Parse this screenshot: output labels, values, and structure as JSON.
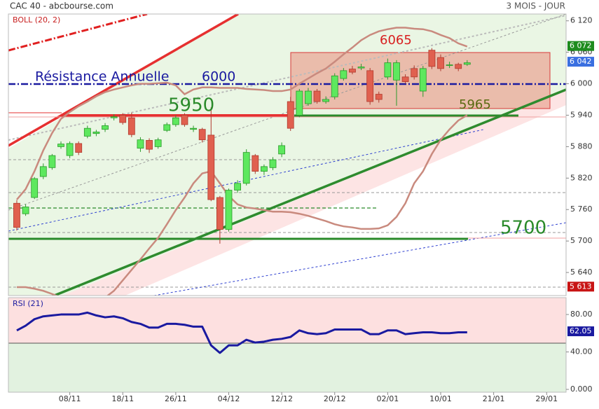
{
  "chart_data": [
    {
      "type": "candlestick",
      "title": "CAC 40 - abcbourse.com",
      "subtitle": "3 MOIS - JOUR",
      "indicator_label": "BOLL (20, 2)",
      "x": [
        0,
        1,
        2,
        3,
        4,
        5,
        6,
        7,
        8,
        9,
        10,
        11,
        12,
        13,
        14,
        15,
        16,
        17,
        18,
        19,
        20,
        21,
        22,
        23,
        24,
        25,
        26,
        27,
        28,
        29,
        30,
        31,
        32,
        33,
        34,
        35,
        36,
        37,
        38,
        39,
        40,
        41,
        42,
        43,
        44,
        45,
        46,
        47,
        48,
        49,
        50,
        51
      ],
      "open": [
        5772,
        5752,
        5783,
        5823,
        5840,
        5880,
        5863,
        5886,
        5900,
        5905,
        5913,
        5935,
        5940,
        5935,
        5877,
        5892,
        5880,
        5911,
        5922,
        5940,
        5913,
        5913,
        5902,
        5783,
        5722,
        5797,
        5810,
        5863,
        5833,
        5840,
        5866,
        5966,
        5940,
        5962,
        5986,
        5966,
        5975,
        6010,
        6028,
        6030,
        6025,
        5980,
        6013,
        6007,
        6013,
        6029,
        5986,
        6064,
        6050,
        6035,
        6037,
        6037
      ],
      "high": [
        5778,
        5770,
        5822,
        5848,
        5866,
        5890,
        5890,
        5890,
        5920,
        5912,
        5925,
        5942,
        5944,
        5945,
        5898,
        5896,
        5897,
        5926,
        5940,
        5944,
        5920,
        5916,
        5955,
        5786,
        5800,
        5816,
        5875,
        5866,
        5846,
        5860,
        5888,
        5975,
        5990,
        5992,
        5990,
        5976,
        6020,
        6030,
        6034,
        6038,
        6030,
        5985,
        6048,
        6045,
        6018,
        6035,
        6034,
        6068,
        6056,
        6042,
        6040,
        6045
      ],
      "low": [
        5720,
        5748,
        5780,
        5818,
        5836,
        5876,
        5858,
        5864,
        5896,
        5900,
        5908,
        5930,
        5922,
        5898,
        5870,
        5868,
        5876,
        5908,
        5918,
        5918,
        5908,
        5888,
        5776,
        5695,
        5718,
        5792,
        5806,
        5828,
        5826,
        5835,
        5860,
        5910,
        5936,
        5958,
        5962,
        5962,
        5970,
        6006,
        6018,
        6026,
        5960,
        5964,
        6008,
        5958,
        6000,
        6008,
        5975,
        6028,
        6024,
        6030,
        6024,
        6034
      ],
      "close": [
        5726,
        5765,
        5819,
        5842,
        5863,
        5885,
        5886,
        5869,
        5915,
        5908,
        5920,
        5937,
        5926,
        5903,
        5893,
        5875,
        5893,
        5922,
        5935,
        5922,
        5915,
        5893,
        5779,
        5722,
        5797,
        5810,
        5869,
        5833,
        5842,
        5855,
        5882,
        5915,
        5986,
        5986,
        5966,
        5970,
        6015,
        6025,
        6022,
        6032,
        5966,
        5970,
        6040,
        6040,
        6004,
        6013,
        6029,
        6033,
        6029,
        6036,
        6029,
        6040
      ],
      "upper_band": [
        5779,
        5799,
        5833,
        5873,
        5906,
        5933,
        5946,
        5957,
        5966,
        5976,
        5984,
        5989,
        5993,
        5997,
        6000,
        6000,
        6001,
        6002,
        5997,
        5980,
        5989,
        5993,
        5993,
        5992,
        5992,
        5992,
        5990,
        5989,
        5988,
        5986,
        5986,
        5989,
        6000,
        6010,
        6020,
        6029,
        6042,
        6056,
        6069,
        6083,
        6093,
        6100,
        6104,
        6107,
        6107,
        6105,
        6104,
        6100,
        6093,
        6087,
        6077,
        6071
      ],
      "lower_band": [
        5612,
        5612,
        5609,
        5605,
        5599,
        5592,
        5585,
        5583,
        5583,
        5585,
        5592,
        5605,
        5625,
        5645,
        5665,
        5686,
        5706,
        5732,
        5759,
        5783,
        5810,
        5829,
        5833,
        5810,
        5786,
        5770,
        5764,
        5762,
        5759,
        5756,
        5756,
        5755,
        5752,
        5748,
        5743,
        5738,
        5732,
        5728,
        5726,
        5723,
        5723,
        5724,
        5730,
        5746,
        5772,
        5810,
        5833,
        5866,
        5893,
        5913,
        5930,
        5940
      ],
      "up_color": "#5ee85e",
      "down_color": "#e0604f",
      "band_color": "#c98a7e",
      "xlim": [
        -0.95,
        62.2
      ],
      "xticks": [
        {
          "value": 6,
          "label": "08/11"
        },
        {
          "value": 12,
          "label": "18/11"
        },
        {
          "value": 18,
          "label": "26/11"
        },
        {
          "value": 24,
          "label": "04/12"
        },
        {
          "value": 30,
          "label": "12/12"
        },
        {
          "value": 36,
          "label": "20/12"
        },
        {
          "value": 42,
          "label": "02/01"
        },
        {
          "value": 48,
          "label": "10/01"
        },
        {
          "value": 54,
          "label": "21/01"
        },
        {
          "value": 60,
          "label": "29/01"
        }
      ],
      "ylim": [
        5596,
        6133
      ],
      "yticks": [
        {
          "value": 6120,
          "label": "6 120"
        },
        {
          "value": 6060,
          "label": "6 060"
        },
        {
          "value": 6000,
          "label": "6 000"
        },
        {
          "value": 5940,
          "label": "5 940"
        },
        {
          "value": 5880,
          "label": "5 880"
        },
        {
          "value": 5820,
          "label": "5 820"
        },
        {
          "value": 5760,
          "label": "5 760"
        },
        {
          "value": 5700,
          "label": "5 700"
        },
        {
          "value": 5640,
          "label": "5 640"
        }
      ],
      "price_badges": [
        {
          "value": 6072,
          "label": "6 072",
          "color": "#1e8c1e"
        },
        {
          "value": 6042,
          "label": "6 042",
          "color": "#3a6fe0"
        },
        {
          "value": 5613,
          "label": "5 613",
          "color": "#c81414"
        }
      ],
      "annotations": [
        "Résistance Annuelle",
        "6000",
        "5950",
        "6065",
        "5965",
        "5700"
      ]
    },
    {
      "type": "line",
      "title": "RSI (21)",
      "x": [
        0,
        1,
        2,
        3,
        4,
        5,
        6,
        7,
        8,
        9,
        10,
        11,
        12,
        13,
        14,
        15,
        16,
        17,
        18,
        19,
        20,
        21,
        22,
        23,
        24,
        25,
        26,
        27,
        28,
        29,
        30,
        31,
        32,
        33,
        34,
        35,
        36,
        37,
        38,
        39,
        40,
        41,
        42,
        43,
        44,
        45,
        46,
        47,
        48,
        49,
        50,
        51
      ],
      "values": [
        63,
        68,
        75,
        78,
        79,
        80,
        80,
        80,
        82,
        79,
        77,
        78,
        76,
        72,
        70,
        66,
        66,
        70,
        70,
        69,
        67,
        67,
        47,
        39,
        47,
        47,
        53,
        50,
        51,
        53,
        54,
        56,
        63,
        60,
        59,
        60,
        64,
        64,
        64,
        64,
        59,
        59,
        63,
        63,
        59,
        60,
        61,
        61,
        60,
        60,
        61,
        61
      ],
      "color": "#1a1aa0",
      "xlim": [
        -0.95,
        62.2
      ],
      "ylim": [
        -3,
        98
      ],
      "yticks": [
        {
          "value": 80,
          "label": "80.00"
        },
        {
          "value": 40,
          "label": "40.00"
        },
        {
          "value": 0,
          "label": "0.000"
        }
      ],
      "badge": {
        "value": 62.05,
        "label": "62.05",
        "color": "#1a1aa0"
      }
    }
  ]
}
